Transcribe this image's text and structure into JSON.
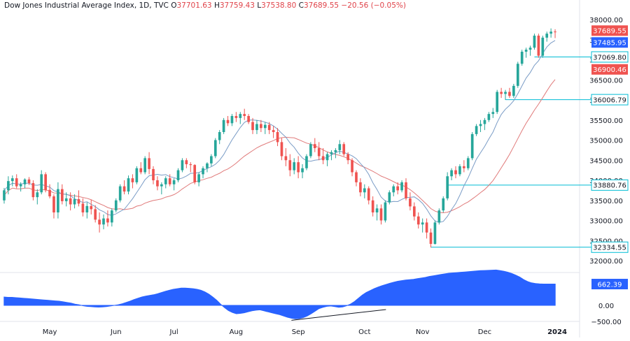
{
  "header": {
    "symbol": "Dow Jones Industrial Average Index, 1D, TVC",
    "open_label": "O",
    "open": "37701.63",
    "high_label": "H",
    "high": "37759.43",
    "low_label": "L",
    "low": "37538.80",
    "close_label": "C",
    "close": "37689.55",
    "change": "−20.56 (−0.05%)"
  },
  "colors": {
    "up": "#26a69a",
    "down": "#ef5350",
    "ma_fast": "#7a9cc6",
    "ma_slow": "#e07a7a",
    "hline": "#00bcd4",
    "osc": "#2962ff",
    "price_tag": "#ef5350",
    "ma_tag": "#2962ff"
  },
  "chart_data": [
    {
      "type": "candlestick",
      "title": "",
      "ylim": [
        32000,
        38000
      ],
      "y_ticks": [
        "38000.00",
        "37500.00",
        "37000.00",
        "36500.00",
        "36000.00",
        "35500.00",
        "35000.00",
        "34500.00",
        "34000.00",
        "33500.00",
        "33000.00",
        "32500.00",
        "32000.00"
      ],
      "x_ticks": [
        "May",
        "Jun",
        "Jul",
        "Aug",
        "Sep",
        "Oct",
        "Nov",
        "Dec",
        "2024"
      ],
      "price_levels": [
        "37069.80",
        "36006.79",
        "33880.76",
        "32334.55"
      ],
      "price_labels": {
        "last_close": "37689.55",
        "ma_fast_value": "37485.95",
        "ma_slow_value": "36900.46"
      },
      "series": [
        {
          "name": "",
          "kind": "candles",
          "values": [
            [
              33500,
              33810,
              33420,
              33750
            ],
            [
              33750,
              34100,
              33650,
              33980
            ],
            [
              33980,
              34120,
              33850,
              34050
            ],
            [
              34050,
              34150,
              33800,
              33850
            ],
            [
              33850,
              33950,
              33720,
              33900
            ],
            [
              33900,
              34050,
              33800,
              34020
            ],
            [
              34020,
              34080,
              33880,
              33930
            ],
            [
              33930,
              34000,
              33500,
              33580
            ],
            [
              33580,
              33780,
              33400,
              33700
            ],
            [
              33700,
              34250,
              33650,
              34150
            ],
            [
              34150,
              34200,
              33700,
              33760
            ],
            [
              33760,
              33900,
              33550,
              33600
            ],
            [
              33600,
              33650,
              33050,
              33200
            ],
            [
              33200,
              33950,
              33050,
              33780
            ],
            [
              33780,
              33900,
              33400,
              33480
            ],
            [
              33480,
              33700,
              33350,
              33550
            ],
            [
              33550,
              33700,
              33250,
              33400
            ],
            [
              33400,
              33650,
              33300,
              33530
            ],
            [
              33530,
              33750,
              33350,
              33420
            ],
            [
              33420,
              33550,
              33100,
              33200
            ],
            [
              33200,
              33450,
              33050,
              33360
            ],
            [
              33360,
              33520,
              33150,
              33280
            ],
            [
              33280,
              33380,
              32950,
              33020
            ],
            [
              33020,
              33200,
              32700,
              32900
            ],
            [
              32900,
              33150,
              32780,
              33050
            ],
            [
              33050,
              33250,
              32850,
              32950
            ],
            [
              32950,
              33300,
              32850,
              33250
            ],
            [
              33250,
              33550,
              33200,
              33500
            ],
            [
              33500,
              33900,
              33450,
              33850
            ],
            [
              33850,
              34000,
              33650,
              33720
            ],
            [
              33720,
              34120,
              33650,
              34050
            ],
            [
              34050,
              34150,
              33800,
              33950
            ],
            [
              33950,
              34350,
              33900,
              34300
            ],
            [
              34300,
              34450,
              34150,
              34200
            ],
            [
              34200,
              34600,
              34150,
              34550
            ],
            [
              34550,
              34700,
              34150,
              34280
            ],
            [
              34280,
              34350,
              33900,
              34000
            ],
            [
              34000,
              34100,
              33750,
              33850
            ],
            [
              33850,
              33950,
              33650,
              33900
            ],
            [
              33900,
              34100,
              33800,
              34050
            ],
            [
              34050,
              34150,
              33850,
              33900
            ],
            [
              33900,
              34050,
              33750,
              34000
            ],
            [
              34000,
              34300,
              33950,
              34250
            ],
            [
              34250,
              34550,
              34200,
              34500
            ],
            [
              34500,
              34550,
              34300,
              34400
            ],
            [
              34400,
              34450,
              34200,
              34380
            ],
            [
              34380,
              34400,
              33900,
              33950
            ],
            [
              33950,
              34200,
              33850,
              34150
            ],
            [
              34150,
              34350,
              34050,
              34300
            ],
            [
              34300,
              34450,
              34200,
              34420
            ],
            [
              34420,
              34650,
              34350,
              34600
            ],
            [
              34600,
              35050,
              34550,
              35000
            ],
            [
              35000,
              35250,
              34900,
              35200
            ],
            [
              35200,
              35550,
              35150,
              35500
            ],
            [
              35500,
              35600,
              35350,
              35420
            ],
            [
              35420,
              35650,
              35350,
              35600
            ],
            [
              35600,
              35700,
              35450,
              35550
            ],
            [
              35550,
              35700,
              35400,
              35650
            ],
            [
              35650,
              35780,
              35500,
              35600
            ],
            [
              35600,
              35650,
              35400,
              35450
            ],
            [
              35450,
              35550,
              35150,
              35250
            ],
            [
              35250,
              35500,
              35150,
              35400
            ],
            [
              35400,
              35500,
              35200,
              35300
            ],
            [
              35300,
              35450,
              35150,
              35380
            ],
            [
              35380,
              35450,
              35150,
              35250
            ],
            [
              35250,
              35350,
              35050,
              35200
            ],
            [
              35200,
              35300,
              34850,
              34950
            ],
            [
              34950,
              35050,
              34500,
              34600
            ],
            [
              34600,
              34800,
              34350,
              34500
            ],
            [
              34500,
              34650,
              34100,
              34250
            ],
            [
              34250,
              34550,
              34150,
              34450
            ],
            [
              34450,
              34600,
              34050,
              34200
            ],
            [
              34200,
              34400,
              34050,
              34300
            ],
            [
              34300,
              34650,
              34250,
              34600
            ],
            [
              34600,
              34950,
              34550,
              34900
            ],
            [
              34900,
              35050,
              34700,
              34800
            ],
            [
              34800,
              34950,
              34500,
              34600
            ],
            [
              34600,
              34800,
              34400,
              34500
            ],
            [
              34500,
              34700,
              34350,
              34650
            ],
            [
              34650,
              34750,
              34500,
              34700
            ],
            [
              34700,
              34800,
              34550,
              34750
            ],
            [
              34750,
              35000,
              34650,
              34900
            ],
            [
              34900,
              34950,
              34600,
              34650
            ],
            [
              34650,
              34700,
              34400,
              34500
            ],
            [
              34500,
              34550,
              34100,
              34200
            ],
            [
              34200,
              34250,
              33850,
              33950
            ],
            [
              33950,
              34050,
              33600,
              33700
            ],
            [
              33700,
              33900,
              33550,
              33800
            ],
            [
              33800,
              33850,
              33400,
              33500
            ],
            [
              33500,
              33600,
              33100,
              33200
            ],
            [
              33200,
              33400,
              33000,
              33300
            ],
            [
              33300,
              33400,
              32900,
              33000
            ],
            [
              33000,
              33500,
              32950,
              33450
            ],
            [
              33450,
              33750,
              33400,
              33700
            ],
            [
              33700,
              33900,
              33600,
              33850
            ],
            [
              33850,
              33950,
              33650,
              33750
            ],
            [
              33750,
              34000,
              33700,
              33950
            ],
            [
              33950,
              34050,
              33500,
              33550
            ],
            [
              33550,
              33700,
              33250,
              33350
            ],
            [
              33350,
              33450,
              33000,
              33100
            ],
            [
              33100,
              33200,
              32800,
              32900
            ],
            [
              32900,
              33050,
              32700,
              32950
            ],
            [
              32950,
              33050,
              32550,
              32700
            ],
            [
              32700,
              32800,
              32327,
              32417
            ],
            [
              32417,
              33000,
              32400,
              32950
            ],
            [
              32950,
              33300,
              32900,
              33250
            ],
            [
              33250,
              33600,
              33200,
              33550
            ],
            [
              33550,
              34200,
              33500,
              34100
            ],
            [
              34100,
              34300,
              34000,
              34250
            ],
            [
              34250,
              34350,
              34050,
              34150
            ],
            [
              34150,
              34400,
              34100,
              34350
            ],
            [
              34350,
              34500,
              34200,
              34300
            ],
            [
              34300,
              34600,
              34250,
              34550
            ],
            [
              34550,
              35200,
              34500,
              35150
            ],
            [
              35150,
              35400,
              35100,
              35350
            ],
            [
              35350,
              35500,
              35200,
              35400
            ],
            [
              35400,
              35550,
              35250,
              35500
            ],
            [
              35500,
              35700,
              35450,
              35650
            ],
            [
              35650,
              35800,
              35550,
              35700
            ],
            [
              35700,
              36250,
              35650,
              36200
            ],
            [
              36200,
              36300,
              36050,
              36150
            ],
            [
              36150,
              36250,
              36000,
              36200
            ],
            [
              36200,
              36300,
              36050,
              36100
            ],
            [
              36100,
              36400,
              36050,
              36350
            ],
            [
              36350,
              36950,
              36300,
              36900
            ],
            [
              36900,
              37250,
              36850,
              37200
            ],
            [
              37200,
              37300,
              37050,
              37250
            ],
            [
              37250,
              37350,
              37100,
              37300
            ],
            [
              37300,
              37650,
              37250,
              37600
            ],
            [
              37600,
              37650,
              37050,
              37100
            ],
            [
              37100,
              37600,
              37050,
              37550
            ],
            [
              37550,
              37700,
              37450,
              37650
            ],
            [
              37650,
              37780,
              37550,
              37700
            ],
            [
              37701.63,
              37759.43,
              37538.8,
              37689.55
            ]
          ]
        },
        {
          "name": "",
          "kind": "ma_fast"
        },
        {
          "name": "",
          "kind": "ma_slow"
        }
      ]
    },
    {
      "type": "area",
      "title": "",
      "ylim": [
        -500,
        1200
      ],
      "y_ticks": [
        "0.00",
        "−500.00"
      ],
      "last_value_label": "662.39",
      "values": [
        260,
        250,
        250,
        240,
        230,
        220,
        210,
        200,
        190,
        180,
        170,
        160,
        150,
        140,
        130,
        110,
        90,
        70,
        40,
        20,
        -10,
        -30,
        -40,
        -50,
        -55,
        -50,
        -40,
        -20,
        0,
        20,
        50,
        90,
        130,
        180,
        220,
        260,
        290,
        310,
        330,
        360,
        400,
        440,
        470,
        500,
        520,
        540,
        540,
        530,
        520,
        500,
        470,
        420,
        350,
        260,
        160,
        40,
        -70,
        -160,
        -220,
        -260,
        -250,
        -230,
        -200,
        -170,
        -150,
        -140,
        -170,
        -200,
        -230,
        -260,
        -290,
        -330,
        -370,
        -400,
        -420,
        -410,
        -380,
        -330,
        -260,
        -180,
        -100,
        -60,
        -30,
        -20,
        -40,
        -60,
        -50,
        -10,
        40,
        120,
        220,
        320,
        400,
        460,
        520,
        570,
        610,
        650,
        690,
        720,
        750,
        770,
        790,
        800,
        810,
        830,
        850,
        870,
        900,
        920,
        940,
        960,
        980,
        1000,
        1010,
        1020,
        1030,
        1040,
        1050,
        1060,
        1070,
        1080,
        1085,
        1090,
        1095,
        1100,
        1080,
        1060,
        1030,
        990,
        940,
        880,
        800,
        740,
        700,
        680,
        670,
        662.39,
        662.39,
        662.39,
        662.39
      ]
    }
  ]
}
